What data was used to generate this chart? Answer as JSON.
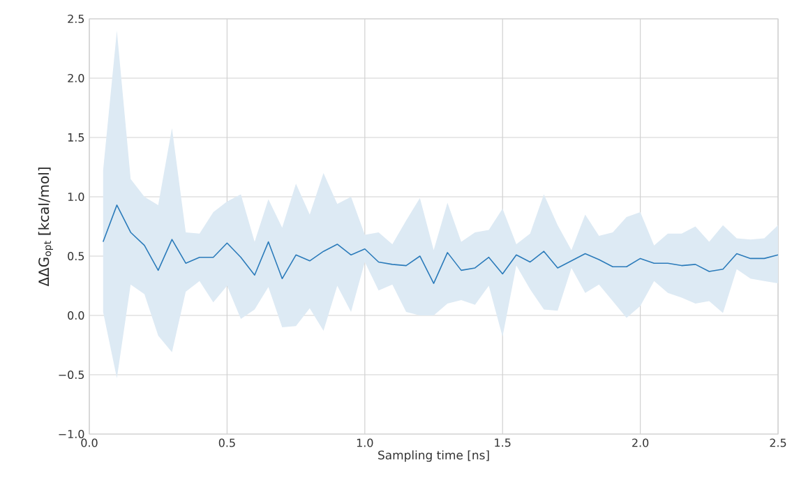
{
  "chart_data": {
    "type": "line",
    "xlabel": "Sampling time [ns]",
    "ylabel": "ΔΔG$_{opt}$ [kcal/mol]",
    "xlim": [
      0,
      2.5
    ],
    "ylim": [
      -1,
      2.5
    ],
    "xticks": [
      {
        "value": 0,
        "label": "0.0"
      },
      {
        "value": 0.5,
        "label": "0.5"
      },
      {
        "value": 1,
        "label": "1.0"
      },
      {
        "value": 1.5,
        "label": "1.5"
      },
      {
        "value": 2,
        "label": "2.0"
      },
      {
        "value": 2.5,
        "label": "2.5"
      }
    ],
    "yticks": [
      {
        "value": -1,
        "label": "−1.0"
      },
      {
        "value": -0.5,
        "label": "−0.5"
      },
      {
        "value": 0,
        "label": "0.0"
      },
      {
        "value": 0.5,
        "label": "0.5"
      },
      {
        "value": 1,
        "label": "1.0"
      },
      {
        "value": 1.5,
        "label": "1.5"
      },
      {
        "value": 2,
        "label": "2.0"
      },
      {
        "value": 2.5,
        "label": "2.5"
      }
    ],
    "grid": true,
    "marker": "none",
    "line_style": "solid",
    "x": [
      0.05,
      0.1,
      0.15,
      0.2,
      0.25,
      0.3,
      0.35,
      0.4,
      0.45,
      0.5,
      0.55,
      0.6,
      0.65,
      0.7,
      0.75,
      0.8,
      0.85,
      0.9,
      0.95,
      1.0,
      1.05,
      1.1,
      1.15,
      1.2,
      1.25,
      1.3,
      1.35,
      1.4,
      1.45,
      1.5,
      1.55,
      1.6,
      1.65,
      1.7,
      1.75,
      1.8,
      1.85,
      1.9,
      1.95,
      2.0,
      2.05,
      2.1,
      2.15,
      2.2,
      2.25,
      2.3,
      2.35,
      2.4,
      2.45,
      2.5
    ],
    "series": [
      {
        "color": "#2b7bba",
        "values": [
          0.62,
          0.93,
          0.7,
          0.59,
          0.38,
          0.64,
          0.44,
          0.49,
          0.49,
          0.61,
          0.49,
          0.34,
          0.62,
          0.31,
          0.51,
          0.46,
          0.54,
          0.6,
          0.51,
          0.56,
          0.45,
          0.43,
          0.42,
          0.5,
          0.27,
          0.53,
          0.38,
          0.4,
          0.49,
          0.35,
          0.51,
          0.45,
          0.54,
          0.4,
          0.46,
          0.52,
          0.47,
          0.41,
          0.41,
          0.48,
          0.44,
          0.44,
          0.42,
          0.43,
          0.37,
          0.39,
          0.52,
          0.48,
          0.48,
          0.51
        ],
        "upper": [
          1.22,
          2.4,
          1.15,
          1.0,
          0.93,
          1.58,
          0.7,
          0.69,
          0.87,
          0.96,
          1.02,
          0.62,
          0.98,
          0.74,
          1.11,
          0.85,
          1.2,
          0.94,
          1.0,
          0.68,
          0.7,
          0.6,
          0.8,
          0.99,
          0.55,
          0.95,
          0.62,
          0.7,
          0.72,
          0.9,
          0.6,
          0.69,
          1.02,
          0.76,
          0.55,
          0.85,
          0.67,
          0.7,
          0.83,
          0.87,
          0.59,
          0.69,
          0.69,
          0.75,
          0.62,
          0.76,
          0.65,
          0.64,
          0.65,
          0.76
        ],
        "lower": [
          0.03,
          -0.53,
          0.26,
          0.18,
          -0.17,
          -0.31,
          0.2,
          0.29,
          0.11,
          0.25,
          -0.03,
          0.05,
          0.24,
          -0.1,
          -0.09,
          0.06,
          -0.13,
          0.25,
          0.03,
          0.45,
          0.21,
          0.26,
          0.03,
          0.0,
          0.0,
          0.1,
          0.13,
          0.09,
          0.25,
          -0.18,
          0.42,
          0.22,
          0.05,
          0.04,
          0.4,
          0.19,
          0.26,
          0.12,
          -0.02,
          0.08,
          0.29,
          0.19,
          0.15,
          0.1,
          0.12,
          0.02,
          0.39,
          0.31,
          0.29,
          0.27
        ]
      }
    ]
  }
}
